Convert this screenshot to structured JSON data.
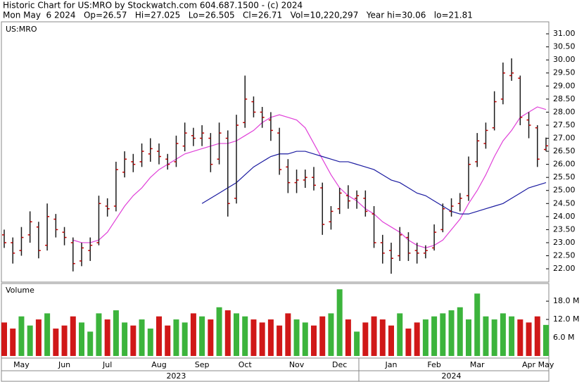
{
  "chart_data": {
    "type": "ohlc",
    "title": "Historic Chart for US:MRO by Stockwatch.com 604.687.1500 - (c) 2024",
    "subtitle": "Mon May  6 2024   Op=26.57   Hi=27.025   Lo=26.505   Cl=26.71   Vol=10,220,297   Year hi=30.06   lo=21.81",
    "symbol": "US:MRO",
    "categories": [
      null,
      null,
      "May",
      null,
      null,
      null,
      null,
      "Jun",
      null,
      null,
      null,
      null,
      "Jul",
      null,
      null,
      null,
      null,
      null,
      "Aug",
      null,
      null,
      null,
      null,
      "Sep",
      null,
      null,
      null,
      null,
      "Oct",
      null,
      null,
      null,
      null,
      null,
      "Nov",
      null,
      null,
      null,
      null,
      "Dec",
      null,
      null,
      null,
      null,
      null,
      "Jan",
      null,
      null,
      null,
      null,
      "Feb",
      null,
      null,
      null,
      null,
      "Mar",
      null,
      null,
      null,
      null,
      null,
      "Apr",
      null,
      "May"
    ],
    "years": [
      null,
      null,
      null,
      null,
      null,
      null,
      null,
      null,
      null,
      null,
      null,
      null,
      null,
      null,
      null,
      null,
      null,
      null,
      null,
      null,
      "2023",
      null,
      null,
      null,
      null,
      null,
      null,
      null,
      null,
      null,
      null,
      null,
      null,
      null,
      null,
      null,
      null,
      null,
      null,
      null,
      null,
      null,
      null,
      null,
      null,
      null,
      null,
      null,
      null,
      null,
      null,
      null,
      "2024",
      null,
      null,
      null,
      null,
      null,
      null,
      null,
      null,
      null,
      null,
      null
    ],
    "open": [
      23.3,
      23.0,
      22.7,
      23.3,
      23.6,
      22.9,
      23.9,
      23.4,
      23.0,
      22.3,
      22.7,
      23.0,
      24.4,
      24.4,
      25.7,
      26.1,
      26.1,
      26.4,
      26.5,
      26.2,
      26.1,
      26.7,
      27.1,
      27.0,
      27.0,
      26.2,
      27.0,
      24.7,
      27.6,
      28.4,
      28.0,
      27.7,
      27.2,
      25.9,
      25.3,
      25.4,
      25.5,
      25.1,
      23.8,
      24.3,
      24.8,
      24.7,
      24.7,
      24.1,
      23.0,
      22.7,
      22.5,
      23.2,
      22.7,
      22.6,
      22.8,
      23.5,
      24.2,
      24.5,
      24.8,
      26.1,
      26.8,
      27.4,
      28.5,
      29.4,
      29.3,
      27.7,
      27.4,
      26.57
    ],
    "high": [
      23.5,
      23.2,
      23.6,
      24.2,
      23.8,
      24.5,
      24.1,
      23.6,
      23.2,
      23.0,
      23.2,
      24.8,
      24.7,
      26.1,
      26.5,
      26.4,
      26.8,
      27.0,
      26.8,
      26.4,
      27.1,
      27.6,
      27.4,
      27.5,
      27.2,
      27.6,
      27.3,
      27.9,
      29.4,
      28.6,
      28.2,
      28.0,
      27.4,
      26.2,
      25.8,
      25.8,
      25.9,
      25.3,
      24.4,
      25.1,
      25.2,
      25.0,
      25.0,
      24.4,
      23.3,
      23.0,
      23.6,
      23.4,
      23.0,
      22.9,
      23.7,
      24.5,
      24.7,
      24.9,
      26.3,
      27.2,
      27.6,
      28.8,
      29.9,
      30.06,
      29.4,
      28.0,
      27.5,
      27.025
    ],
    "low": [
      22.8,
      22.2,
      22.5,
      23.0,
      22.4,
      22.7,
      23.2,
      22.9,
      21.9,
      22.1,
      22.3,
      22.9,
      24.0,
      24.2,
      25.5,
      25.7,
      25.9,
      26.1,
      26.0,
      25.8,
      25.9,
      26.5,
      26.7,
      26.7,
      25.7,
      26.0,
      24.0,
      24.5,
      27.4,
      27.8,
      27.4,
      26.9,
      25.6,
      24.9,
      24.9,
      25.1,
      25.0,
      23.3,
      23.5,
      24.1,
      24.3,
      24.3,
      24.0,
      22.8,
      22.2,
      21.81,
      22.3,
      22.3,
      22.2,
      22.4,
      22.7,
      23.4,
      24.0,
      24.2,
      24.6,
      25.9,
      26.6,
      27.3,
      28.3,
      29.2,
      27.5,
      27.0,
      25.9,
      26.505
    ],
    "close": [
      23.0,
      22.6,
      23.2,
      23.8,
      22.7,
      24.0,
      23.5,
      23.2,
      22.2,
      22.8,
      22.9,
      24.5,
      24.3,
      25.8,
      26.2,
      26.0,
      26.5,
      26.6,
      26.3,
      26.0,
      26.8,
      27.2,
      27.0,
      27.2,
      26.0,
      27.2,
      24.5,
      27.5,
      28.5,
      28.0,
      27.8,
      27.3,
      25.8,
      25.3,
      25.4,
      25.5,
      25.2,
      23.7,
      24.2,
      24.9,
      24.6,
      24.8,
      24.2,
      23.0,
      22.6,
      22.4,
      23.3,
      22.6,
      22.6,
      22.7,
      23.4,
      24.3,
      24.4,
      24.7,
      26.0,
      26.9,
      27.3,
      28.4,
      29.5,
      29.5,
      27.8,
      27.5,
      26.2,
      26.71
    ],
    "bar_color": "#1a1a1a",
    "tick_color": "#c00000",
    "series": [
      {
        "color": "#e040d8",
        "values": [
          null,
          null,
          null,
          null,
          null,
          null,
          null,
          null,
          23.1,
          23.0,
          23.0,
          23.1,
          23.4,
          23.9,
          24.4,
          24.8,
          25.1,
          25.5,
          25.8,
          26.0,
          26.2,
          26.4,
          26.5,
          26.6,
          26.7,
          26.8,
          26.8,
          26.9,
          27.1,
          27.3,
          27.6,
          27.8,
          27.9,
          27.8,
          27.7,
          27.4,
          26.8,
          26.2,
          25.6,
          25.1,
          24.8,
          24.6,
          24.3,
          24.1,
          23.8,
          23.6,
          23.4,
          23.1,
          22.9,
          22.8,
          22.9,
          23.1,
          23.5,
          23.9,
          24.5,
          25.0,
          25.6,
          26.3,
          26.9,
          27.3,
          27.8,
          28.0,
          28.2,
          28.1
        ]
      },
      {
        "color": "#1a1aa0",
        "values": [
          null,
          null,
          null,
          null,
          null,
          null,
          null,
          null,
          null,
          null,
          null,
          null,
          null,
          null,
          null,
          null,
          null,
          null,
          null,
          null,
          null,
          null,
          null,
          24.5,
          24.7,
          24.9,
          25.1,
          25.3,
          25.6,
          25.9,
          26.1,
          26.3,
          26.4,
          26.4,
          26.5,
          26.5,
          26.4,
          26.3,
          26.2,
          26.1,
          26.1,
          26.0,
          25.9,
          25.8,
          25.6,
          25.4,
          25.3,
          25.1,
          24.9,
          24.8,
          24.6,
          24.4,
          24.2,
          24.1,
          24.1,
          24.2,
          24.3,
          24.4,
          24.5,
          24.7,
          24.9,
          25.1,
          25.2,
          25.3
        ]
      }
    ],
    "ylim": [
      21.49,
      31.46
    ],
    "yticks": [
      {
        "value": 22,
        "label": "22.00"
      },
      {
        "value": 22.5,
        "label": "22.50"
      },
      {
        "value": 23,
        "label": "23.00"
      },
      {
        "value": 23.5,
        "label": "23.50"
      },
      {
        "value": 24,
        "label": "24.00"
      },
      {
        "value": 24.5,
        "label": "24.50"
      },
      {
        "value": 25,
        "label": "25.00"
      },
      {
        "value": 25.5,
        "label": "25.50"
      },
      {
        "value": 26,
        "label": "26.00"
      },
      {
        "value": 26.5,
        "label": "26.50"
      },
      {
        "value": 27,
        "label": "27.00"
      },
      {
        "value": 27.5,
        "label": "27.50"
      },
      {
        "value": 28,
        "label": "28.00"
      },
      {
        "value": 28.5,
        "label": "28.50"
      },
      {
        "value": 29,
        "label": "29.00"
      },
      {
        "value": 29.5,
        "label": "29.50"
      },
      {
        "value": 30,
        "label": "30.00"
      },
      {
        "value": 30.5,
        "label": "30.50"
      },
      {
        "value": 31,
        "label": "31.00"
      }
    ],
    "volume": {
      "label": "Volume",
      "values": [
        11,
        9,
        13,
        10,
        12,
        14,
        9,
        10,
        13,
        11,
        8,
        14,
        12,
        15,
        11,
        10,
        12,
        9,
        13,
        10,
        12,
        11,
        14,
        13,
        12,
        16,
        15,
        14,
        13,
        12,
        11,
        12,
        10,
        14,
        12,
        11,
        10,
        13,
        14,
        21.9,
        12,
        8,
        11,
        13,
        12,
        10,
        14,
        9,
        11,
        12,
        13,
        14,
        15,
        16,
        12,
        20.5,
        13,
        12,
        14,
        13,
        12,
        11,
        13,
        10.2
      ],
      "up_color": "#3cb43c",
      "down_color": "#d01818",
      "ylim": [
        0,
        23.8
      ],
      "yticks": [
        {
          "value": 6,
          "label": "6.0 M"
        },
        {
          "value": 12,
          "label": "12.0 M"
        },
        {
          "value": 18,
          "label": "18.0 M"
        }
      ]
    }
  }
}
